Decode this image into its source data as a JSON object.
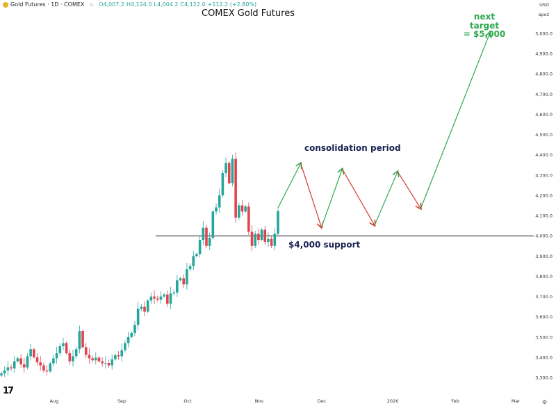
{
  "header": {
    "symbol": "Gold Futures · 1D · COMEX",
    "open": "O4,007.2",
    "high": "H4,124.0",
    "low": "L4,004.2",
    "close": "C4,122.0",
    "change": "+112.2 (+2.80%)"
  },
  "currency": "USD",
  "scale_mode": "apoz",
  "logo": "TV",
  "chart_data": {
    "type": "candlestick",
    "title": "COMEX Gold Futures",
    "ylim": [
      3250,
      5050
    ],
    "y_ticks": [
      "3,300.0",
      "3,400.0",
      "3,500.0",
      "3,600.0",
      "3,700.0",
      "3,800.0",
      "3,900.0",
      "4,000.0",
      "4,100.0",
      "4,200.0",
      "4,300.0",
      "4,400.0",
      "4,500.0",
      "4,600.0",
      "4,700.0",
      "4,800.0",
      "4,900.0",
      "5,000.0"
    ],
    "x_ticks": [
      "Aug",
      "Sep",
      "Oct",
      "Nov",
      "Dec",
      "2026",
      "Feb",
      "Mar"
    ],
    "closes": [
      3320,
      3335,
      3350,
      3345,
      3380,
      3395,
      3365,
      3350,
      3405,
      3440,
      3400,
      3375,
      3360,
      3335,
      3330,
      3370,
      3395,
      3420,
      3455,
      3470,
      3420,
      3380,
      3405,
      3440,
      3530,
      3450,
      3412,
      3395,
      3385,
      3398,
      3380,
      3370,
      3372,
      3360,
      3390,
      3410,
      3405,
      3435,
      3470,
      3500,
      3520,
      3560,
      3640,
      3650,
      3625,
      3680,
      3700,
      3690,
      3685,
      3700,
      3710,
      3665,
      3715,
      3720,
      3780,
      3790,
      3760,
      3835,
      3850,
      3900,
      3910,
      3980,
      4040,
      3950,
      3990,
      4120,
      4140,
      4200,
      4310,
      4360,
      4260,
      4380,
      4090,
      4150,
      4120,
      4145,
      4020,
      3950,
      4010,
      3980,
      4030,
      3970,
      3985,
      3950,
      4010,
      4122
    ],
    "support": {
      "price": 4000,
      "label": "$4,000 support"
    },
    "projection": [
      {
        "date": "Nov 9",
        "price": 4135
      },
      {
        "date": "Nov 19",
        "price": 4358
      },
      {
        "date": "Nov 28",
        "price": 4042
      },
      {
        "date": "Dec 7",
        "price": 4330
      },
      {
        "date": "Dec 21",
        "price": 4052
      },
      {
        "date": "Dec 31",
        "price": 4317
      },
      {
        "date": "Jan 10",
        "price": 4135
      },
      {
        "date": "Feb 9",
        "price": 5003
      }
    ],
    "annotations": {
      "consolidation": "consolidation period",
      "target_line1": "next target",
      "target_line2": "= $5,000"
    },
    "colors": {
      "up": "#26a69a",
      "down": "#e0444f",
      "projection_up": "#2fa84f",
      "projection_down": "#d23a2e",
      "label": "#1a2350",
      "target": "#2fa84f"
    }
  }
}
